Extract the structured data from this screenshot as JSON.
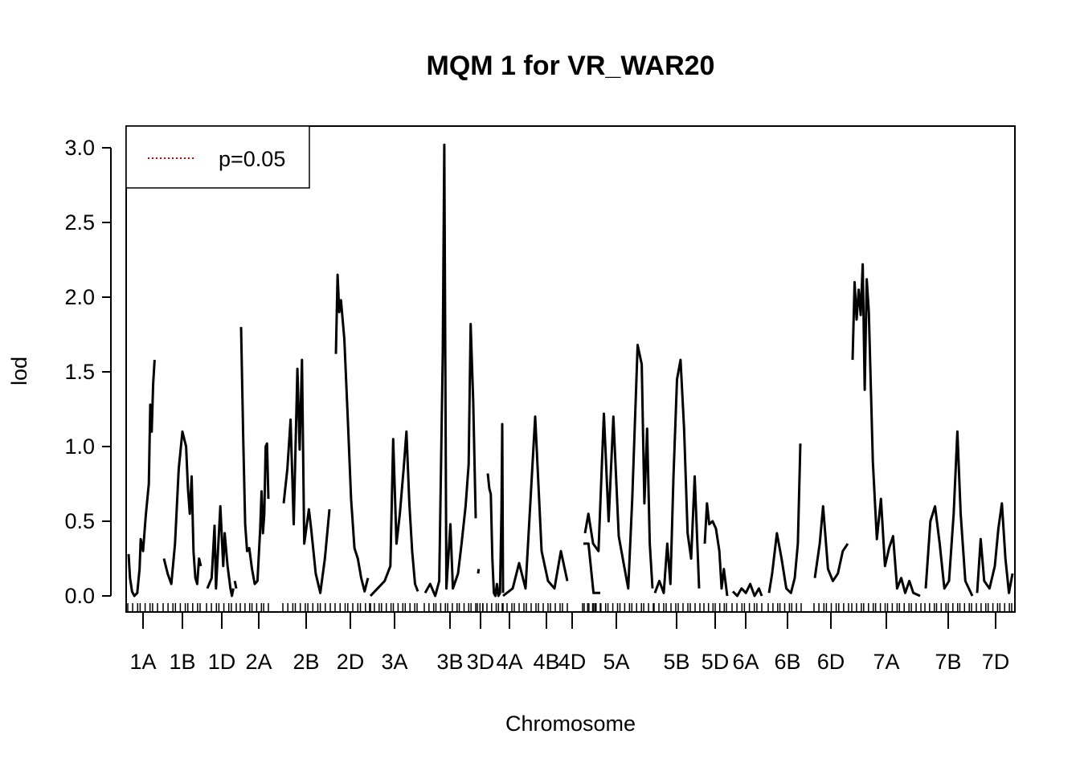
{
  "chart_data": {
    "type": "line",
    "title": "MQM 1 for VR_WAR20",
    "xlabel": "Chromosome",
    "ylabel": "lod",
    "ylim": [
      0,
      3.0
    ],
    "yticks": [
      "0.0",
      "0.5",
      "1.0",
      "1.5",
      "2.0",
      "2.5",
      "3.0"
    ],
    "grid": false,
    "legend": {
      "position": "top-left",
      "entries": [
        {
          "label": "p=0.05",
          "color": "#cc0000",
          "style": "dotted"
        }
      ]
    },
    "line_color": "#000000",
    "chromosomes": [
      {
        "name": "1A",
        "segments": [
          [
            [
              0,
              0.28
            ],
            [
              0.05,
              0.12
            ],
            [
              0.12,
              0.03
            ],
            [
              0.2,
              0
            ],
            [
              0.3,
              0.02
            ],
            [
              0.38,
              0.18
            ],
            [
              0.42,
              0.38
            ],
            [
              0.5,
              0.3
            ],
            [
              0.6,
              0.55
            ],
            [
              0.7,
              0.75
            ],
            [
              0.75,
              1.28
            ],
            [
              0.8,
              1.1
            ],
            [
              0.85,
              1.42
            ],
            [
              0.9,
              1.58
            ]
          ]
        ]
      },
      {
        "name": "1B",
        "segments": [
          [
            [
              0,
              0.25
            ],
            [
              0.1,
              0.15
            ],
            [
              0.2,
              0.08
            ],
            [
              0.3,
              0.35
            ],
            [
              0.4,
              0.85
            ],
            [
              0.5,
              1.1
            ],
            [
              0.6,
              1.0
            ],
            [
              0.65,
              0.72
            ],
            [
              0.7,
              0.55
            ],
            [
              0.75,
              0.8
            ],
            [
              0.8,
              0.3
            ],
            [
              0.85,
              0.12
            ],
            [
              0.9,
              0.08
            ],
            [
              0.95,
              0.25
            ],
            [
              1,
              0.2
            ]
          ]
        ]
      },
      {
        "name": "1D",
        "segments": [
          [
            [
              0,
              0.05
            ],
            [
              0.15,
              0.12
            ],
            [
              0.25,
              0.47
            ],
            [
              0.3,
              0.05
            ],
            [
              0.45,
              0.6
            ],
            [
              0.55,
              0.2
            ],
            [
              0.6,
              0.42
            ],
            [
              0.7,
              0.2
            ],
            [
              0.8,
              0.05
            ],
            [
              0.85,
              0
            ],
            [
              0.9,
              0.05
            ]
          ],
          [
            [
              0.95,
              0.1
            ],
            [
              1,
              0.05
            ]
          ]
        ]
      },
      {
        "name": "2A",
        "segments": [
          [
            [
              0,
              1.8
            ],
            [
              0.08,
              1.05
            ],
            [
              0.15,
              0.48
            ],
            [
              0.22,
              0.3
            ],
            [
              0.3,
              0.32
            ],
            [
              0.4,
              0.18
            ],
            [
              0.5,
              0.08
            ],
            [
              0.6,
              0.1
            ],
            [
              0.7,
              0.45
            ],
            [
              0.75,
              0.7
            ],
            [
              0.8,
              0.42
            ],
            [
              0.85,
              0.55
            ],
            [
              0.9,
              1.0
            ],
            [
              0.95,
              1.02
            ],
            [
              1,
              0.65
            ]
          ]
        ]
      },
      {
        "name": "2B",
        "segments": [
          [
            [
              0,
              0.62
            ],
            [
              0.08,
              0.85
            ],
            [
              0.15,
              1.18
            ],
            [
              0.22,
              0.48
            ],
            [
              0.3,
              1.52
            ],
            [
              0.35,
              0.98
            ],
            [
              0.4,
              1.58
            ],
            [
              0.45,
              0.35
            ],
            [
              0.55,
              0.58
            ],
            [
              0.6,
              0.45
            ],
            [
              0.7,
              0.15
            ],
            [
              0.8,
              0.02
            ],
            [
              0.9,
              0.25
            ],
            [
              1,
              0.58
            ]
          ]
        ]
      },
      {
        "name": "2D",
        "segments": [
          [
            [
              0,
              1.62
            ],
            [
              0.05,
              2.15
            ],
            [
              0.1,
              1.9
            ],
            [
              0.15,
              1.98
            ],
            [
              0.25,
              1.72
            ],
            [
              0.35,
              1.2
            ],
            [
              0.45,
              0.65
            ],
            [
              0.55,
              0.32
            ],
            [
              0.65,
              0.25
            ],
            [
              0.75,
              0.12
            ],
            [
              0.85,
              0.03
            ],
            [
              0.95,
              0.12
            ]
          ]
        ]
      },
      {
        "name": "3A",
        "segments": [
          [
            [
              0,
              0
            ],
            [
              0.15,
              0.05
            ],
            [
              0.3,
              0.1
            ],
            [
              0.42,
              0.2
            ],
            [
              0.48,
              1.05
            ],
            [
              0.55,
              0.35
            ],
            [
              0.62,
              0.55
            ],
            [
              0.7,
              0.85
            ],
            [
              0.76,
              1.1
            ],
            [
              0.82,
              0.62
            ],
            [
              0.88,
              0.3
            ],
            [
              0.94,
              0.08
            ],
            [
              1,
              0.03
            ]
          ]
        ]
      },
      {
        "name": "3B",
        "segments": [
          [
            [
              0,
              0.02
            ],
            [
              0.1,
              0.08
            ],
            [
              0.2,
              0
            ],
            [
              0.28,
              0.1
            ],
            [
              0.35,
              1.62
            ],
            [
              0.38,
              3.02
            ],
            [
              0.42,
              0.05
            ],
            [
              0.5,
              0.48
            ],
            [
              0.55,
              0.05
            ],
            [
              0.65,
              0.15
            ],
            [
              0.72,
              0.35
            ],
            [
              0.8,
              0.6
            ],
            [
              0.86,
              0.88
            ],
            [
              0.9,
              1.82
            ],
            [
              0.95,
              1.3
            ],
            [
              1,
              0.52
            ]
          ]
        ]
      },
      {
        "name": "3D",
        "segments": [
          [
            [
              0,
              0.15
            ],
            [
              0.1,
              0.18
            ]
          ]
        ]
      },
      {
        "name": "4A",
        "segments": [
          [
            [
              0,
              0.82
            ],
            [
              0.1,
              0.72
            ],
            [
              0.2,
              0.68
            ],
            [
              0.3,
              0.25
            ],
            [
              0.4,
              0.02
            ],
            [
              0.5,
              0
            ],
            [
              0.6,
              0.08
            ],
            [
              0.7,
              0
            ],
            [
              0.8,
              0.02
            ],
            [
              0.9,
              0.58
            ],
            [
              0.95,
              1.15
            ],
            [
              1,
              0.02
            ]
          ]
        ]
      },
      {
        "name": "4B",
        "segments": [
          [
            [
              0,
              0
            ],
            [
              0.15,
              0.05
            ],
            [
              0.25,
              0.22
            ],
            [
              0.35,
              0.05
            ],
            [
              0.5,
              1.2
            ],
            [
              0.6,
              0.3
            ],
            [
              0.7,
              0.1
            ],
            [
              0.8,
              0.05
            ],
            [
              0.9,
              0.3
            ],
            [
              1,
              0.1
            ]
          ]
        ]
      },
      {
        "name": "4D",
        "segments": [
          [
            [
              0,
              0.35
            ],
            [
              0.3,
              0.35
            ],
            [
              0.6,
              0.02
            ],
            [
              1,
              0.02
            ]
          ]
        ]
      },
      {
        "name": "5A",
        "segments": [
          [
            [
              0,
              0.42
            ],
            [
              0.05,
              0.55
            ],
            [
              0.12,
              0.35
            ],
            [
              0.2,
              0.3
            ],
            [
              0.28,
              1.22
            ],
            [
              0.35,
              0.5
            ],
            [
              0.42,
              1.2
            ],
            [
              0.5,
              0.4
            ],
            [
              0.58,
              0.2
            ],
            [
              0.64,
              0.05
            ],
            [
              0.7,
              0.65
            ],
            [
              0.78,
              1.68
            ],
            [
              0.84,
              1.55
            ],
            [
              0.88,
              0.62
            ],
            [
              0.92,
              1.12
            ],
            [
              0.96,
              0.35
            ],
            [
              1,
              0.05
            ]
          ]
        ]
      },
      {
        "name": "5B",
        "segments": [
          [
            [
              0,
              0.02
            ],
            [
              0.1,
              0.1
            ],
            [
              0.2,
              0.02
            ],
            [
              0.28,
              0.35
            ],
            [
              0.35,
              0.08
            ],
            [
              0.42,
              0.8
            ],
            [
              0.5,
              1.45
            ],
            [
              0.58,
              1.58
            ],
            [
              0.66,
              1.12
            ],
            [
              0.74,
              0.42
            ],
            [
              0.82,
              0.25
            ],
            [
              0.9,
              0.8
            ],
            [
              1,
              0.05
            ]
          ]
        ]
      },
      {
        "name": "5D",
        "segments": [
          [
            [
              0,
              0.35
            ],
            [
              0.1,
              0.62
            ],
            [
              0.2,
              0.48
            ],
            [
              0.35,
              0.5
            ],
            [
              0.5,
              0.45
            ],
            [
              0.65,
              0.3
            ],
            [
              0.75,
              0.05
            ],
            [
              0.85,
              0.18
            ],
            [
              1,
              0
            ]
          ]
        ]
      },
      {
        "name": "6A",
        "segments": [
          [
            [
              0,
              0.03
            ],
            [
              0.15,
              0
            ],
            [
              0.3,
              0.05
            ],
            [
              0.45,
              0.02
            ],
            [
              0.6,
              0.08
            ],
            [
              0.75,
              0
            ],
            [
              0.9,
              0.05
            ],
            [
              1,
              0
            ]
          ]
        ]
      },
      {
        "name": "6B",
        "segments": [
          [
            [
              0,
              0.02
            ],
            [
              0.1,
              0.15
            ],
            [
              0.25,
              0.42
            ],
            [
              0.4,
              0.25
            ],
            [
              0.55,
              0.05
            ],
            [
              0.7,
              0.02
            ],
            [
              0.82,
              0.12
            ],
            [
              0.92,
              0.35
            ],
            [
              1,
              1.02
            ]
          ]
        ]
      },
      {
        "name": "6D",
        "segments": [
          [
            [
              0,
              0.12
            ],
            [
              0.15,
              0.35
            ],
            [
              0.25,
              0.6
            ],
            [
              0.4,
              0.18
            ],
            [
              0.55,
              0.1
            ],
            [
              0.7,
              0.15
            ],
            [
              0.85,
              0.3
            ],
            [
              1,
              0.35
            ]
          ]
        ]
      },
      {
        "name": "7A",
        "segments": [
          [
            [
              0,
              1.58
            ],
            [
              0.03,
              2.1
            ],
            [
              0.06,
              1.85
            ],
            [
              0.09,
              2.05
            ],
            [
              0.12,
              1.88
            ],
            [
              0.15,
              2.22
            ],
            [
              0.18,
              1.38
            ],
            [
              0.21,
              2.12
            ],
            [
              0.24,
              1.9
            ],
            [
              0.3,
              0.9
            ],
            [
              0.36,
              0.38
            ],
            [
              0.42,
              0.65
            ],
            [
              0.48,
              0.2
            ],
            [
              0.54,
              0.32
            ],
            [
              0.6,
              0.4
            ],
            [
              0.66,
              0.05
            ],
            [
              0.72,
              0.12
            ],
            [
              0.78,
              0.02
            ],
            [
              0.84,
              0.1
            ],
            [
              0.9,
              0.02
            ],
            [
              1,
              0
            ]
          ]
        ]
      },
      {
        "name": "7B",
        "segments": [
          [
            [
              0,
              0.05
            ],
            [
              0.1,
              0.5
            ],
            [
              0.2,
              0.6
            ],
            [
              0.3,
              0.35
            ],
            [
              0.4,
              0.05
            ],
            [
              0.5,
              0.1
            ],
            [
              0.6,
              0.55
            ],
            [
              0.68,
              1.1
            ],
            [
              0.75,
              0.55
            ],
            [
              0.85,
              0.1
            ],
            [
              1,
              0
            ]
          ]
        ]
      },
      {
        "name": "7D",
        "segments": [
          [
            [
              0,
              0.02
            ],
            [
              0.1,
              0.38
            ],
            [
              0.2,
              0.1
            ],
            [
              0.35,
              0.05
            ],
            [
              0.5,
              0.2
            ],
            [
              0.6,
              0.45
            ],
            [
              0.7,
              0.62
            ],
            [
              0.8,
              0.25
            ],
            [
              0.9,
              0.02
            ],
            [
              1,
              0.15
            ]
          ]
        ]
      }
    ]
  }
}
